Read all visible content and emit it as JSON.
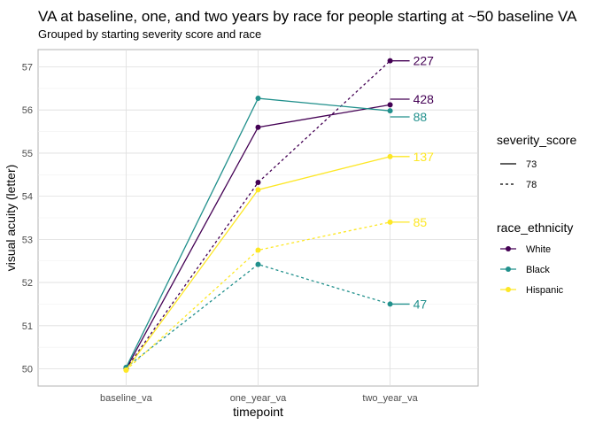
{
  "chart_data": {
    "type": "line",
    "title": "VA at baseline, one, and two years by race for people starting at ~50 baseline VA",
    "subtitle": "Grouped by starting severity score and race",
    "xlabel": "timepoint",
    "ylabel": "visual acuity (letter)",
    "categories": [
      "baseline_va",
      "one_year_va",
      "two_year_va"
    ],
    "ylim": [
      49.6,
      57.4
    ],
    "yticks": [
      50,
      51,
      52,
      53,
      54,
      55,
      56,
      57
    ],
    "grid": true,
    "legend_placement": "right",
    "legends": {
      "linetype": {
        "title": "severity_score",
        "entries": [
          {
            "label": "73",
            "dash": "solid"
          },
          {
            "label": "78",
            "dash": "dashed"
          }
        ]
      },
      "color": {
        "title": "race_ethnicity",
        "entries": [
          {
            "label": "White",
            "color": "#440154"
          },
          {
            "label": "Black",
            "color": "#21908C"
          },
          {
            "label": "Hispanic",
            "color": "#FDE725"
          }
        ]
      }
    },
    "series": [
      {
        "race": "White",
        "severity": "73",
        "color": "#440154",
        "dash": "solid",
        "values": [
          50.0,
          55.6,
          56.12
        ],
        "end_label": "428",
        "end_label_value": 56.25
      },
      {
        "race": "White",
        "severity": "78",
        "color": "#440154",
        "dash": "dashed",
        "values": [
          50.0,
          54.32,
          57.14
        ],
        "end_label": "227",
        "end_label_value": 57.14
      },
      {
        "race": "Black",
        "severity": "73",
        "color": "#21908C",
        "dash": "solid",
        "values": [
          50.03,
          56.27,
          55.98
        ],
        "end_label": "88",
        "end_label_value": 55.84
      },
      {
        "race": "Black",
        "severity": "78",
        "color": "#21908C",
        "dash": "dashed",
        "values": [
          50.03,
          52.42,
          51.5
        ],
        "end_label": "47",
        "end_label_value": 51.5
      },
      {
        "race": "Hispanic",
        "severity": "73",
        "color": "#FDE725",
        "dash": "solid",
        "values": [
          49.97,
          54.15,
          54.92
        ],
        "end_label": "137",
        "end_label_value": 54.92
      },
      {
        "race": "Hispanic",
        "severity": "78",
        "color": "#FDE725",
        "dash": "dashed",
        "values": [
          49.97,
          52.75,
          53.4
        ],
        "end_label": "85",
        "end_label_value": 53.4
      }
    ]
  }
}
